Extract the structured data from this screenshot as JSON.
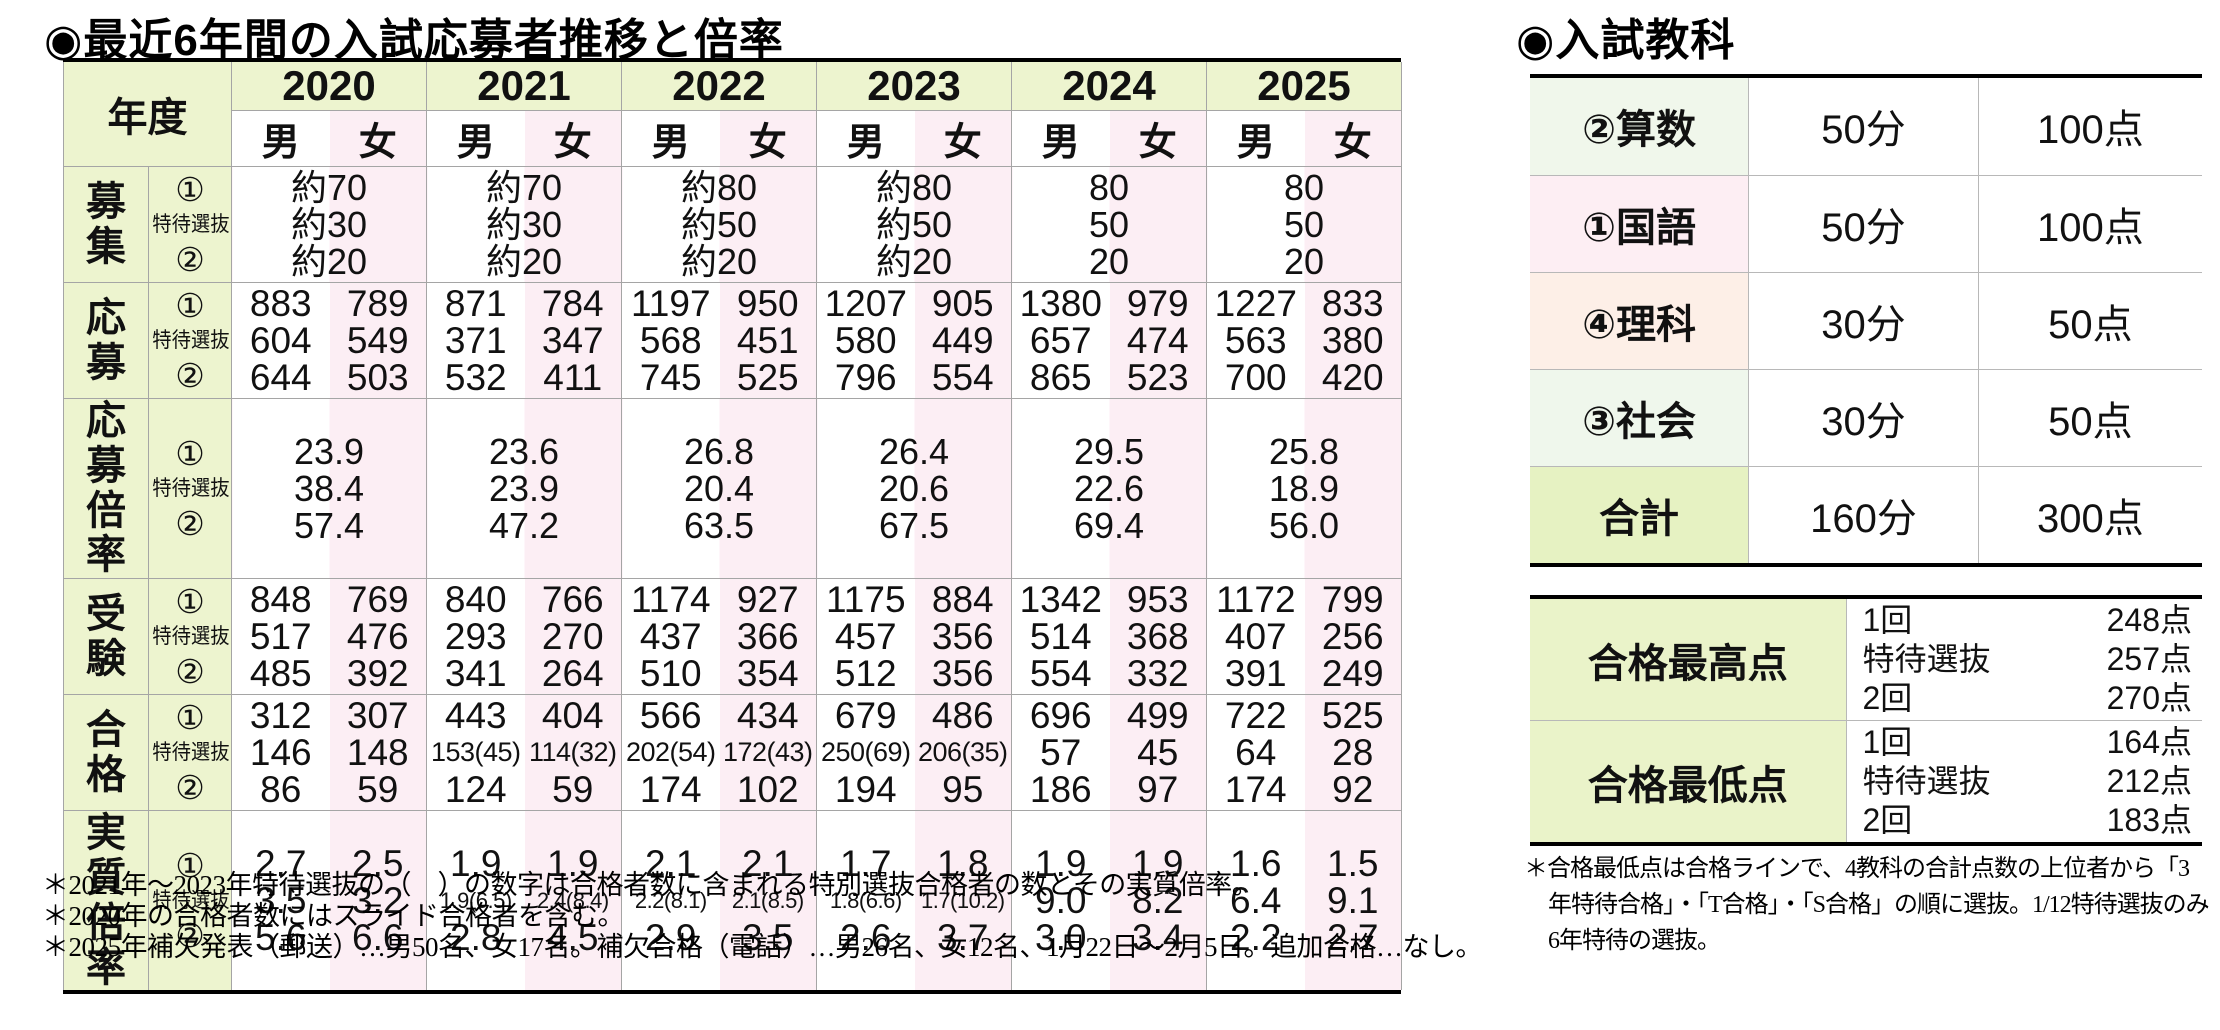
{
  "page": {
    "left_title": "◉最近6年間の入試応募者推移と倍率",
    "right_title": "◉入試教科"
  },
  "colors": {
    "label_green": "#edf4cf",
    "female_pink": "#fceef4",
    "total_green": "#e6f2c2",
    "border_black": "#000000",
    "grid_gray": "#a5a5a5"
  },
  "admissions": {
    "header": {
      "year_label": "年度",
      "male": "男",
      "female": "女",
      "years": [
        "2020",
        "2021",
        "2022",
        "2023",
        "2024",
        "2025"
      ],
      "sub_labels": [
        "①",
        "特待選抜",
        "②"
      ]
    },
    "rows": [
      {
        "label": "募集",
        "merged": true,
        "values": [
          [
            "約70",
            "約30",
            "約20"
          ],
          [
            "約70",
            "約30",
            "約20"
          ],
          [
            "約80",
            "約50",
            "約20"
          ],
          [
            "約80",
            "約50",
            "約20"
          ],
          [
            "80",
            "50",
            "20"
          ],
          [
            "80",
            "50",
            "20"
          ]
        ]
      },
      {
        "label": "応募",
        "merged": false,
        "values": [
          [
            [
              "883",
              "604",
              "644"
            ],
            [
              "789",
              "549",
              "503"
            ]
          ],
          [
            [
              "871",
              "371",
              "532"
            ],
            [
              "784",
              "347",
              "411"
            ]
          ],
          [
            [
              "1197",
              "568",
              "745"
            ],
            [
              "950",
              "451",
              "525"
            ]
          ],
          [
            [
              "1207",
              "580",
              "796"
            ],
            [
              "905",
              "449",
              "554"
            ]
          ],
          [
            [
              "1380",
              "657",
              "865"
            ],
            [
              "979",
              "474",
              "523"
            ]
          ],
          [
            [
              "1227",
              "563",
              "700"
            ],
            [
              "833",
              "380",
              "420"
            ]
          ]
        ]
      },
      {
        "label": "応募倍率",
        "merged": true,
        "values": [
          [
            "23.9",
            "38.4",
            "57.4"
          ],
          [
            "23.6",
            "23.9",
            "47.2"
          ],
          [
            "26.8",
            "20.4",
            "63.5"
          ],
          [
            "26.4",
            "20.6",
            "67.5"
          ],
          [
            "29.5",
            "22.6",
            "69.4"
          ],
          [
            "25.8",
            "18.9",
            "56.0"
          ]
        ]
      },
      {
        "label": "受験",
        "merged": false,
        "values": [
          [
            [
              "848",
              "517",
              "485"
            ],
            [
              "769",
              "476",
              "392"
            ]
          ],
          [
            [
              "840",
              "293",
              "341"
            ],
            [
              "766",
              "270",
              "264"
            ]
          ],
          [
            [
              "1174",
              "437",
              "510"
            ],
            [
              "927",
              "366",
              "354"
            ]
          ],
          [
            [
              "1175",
              "457",
              "512"
            ],
            [
              "884",
              "356",
              "356"
            ]
          ],
          [
            [
              "1342",
              "514",
              "554"
            ],
            [
              "953",
              "368",
              "332"
            ]
          ],
          [
            [
              "1172",
              "407",
              "391"
            ],
            [
              "799",
              "256",
              "249"
            ]
          ]
        ]
      },
      {
        "label": "合格",
        "merged": false,
        "values": [
          [
            [
              "312",
              "146",
              "86"
            ],
            [
              "307",
              "148",
              "59"
            ]
          ],
          [
            [
              "443",
              "153(45)",
              "124"
            ],
            [
              "404",
              "114(32)",
              "59"
            ]
          ],
          [
            [
              "566",
              "202(54)",
              "174"
            ],
            [
              "434",
              "172(43)",
              "102"
            ]
          ],
          [
            [
              "679",
              "250(69)",
              "194"
            ],
            [
              "486",
              "206(35)",
              "95"
            ]
          ],
          [
            [
              "696",
              "57",
              "186"
            ],
            [
              "499",
              "45",
              "97"
            ]
          ],
          [
            [
              "722",
              "64",
              "174"
            ],
            [
              "525",
              "28",
              "92"
            ]
          ]
        ]
      },
      {
        "label": "実質倍率",
        "merged": false,
        "values": [
          [
            [
              "2.7",
              "3.5",
              "5.6"
            ],
            [
              "2.5",
              "3.2",
              "6.6"
            ]
          ],
          [
            [
              "1.9",
              "1.9(6.5)",
              "2.8"
            ],
            [
              "1.9",
              "2.4(8.4)",
              "4.5"
            ]
          ],
          [
            [
              "2.1",
              "2.2(8.1)",
              "2.9"
            ],
            [
              "2.1",
              "2.1(8.5)",
              "3.5"
            ]
          ],
          [
            [
              "1.7",
              "1.8(6.6)",
              "2.6"
            ],
            [
              "1.8",
              "1.7(10.2)",
              "3.7"
            ]
          ],
          [
            [
              "1.9",
              "9.0",
              "3.0"
            ],
            [
              "1.9",
              "8.2",
              "3.4"
            ]
          ],
          [
            [
              "1.6",
              "6.4",
              "2.2"
            ],
            [
              "1.5",
              "9.1",
              "2.7"
            ]
          ]
        ]
      }
    ],
    "footnotes": [
      "＊2021年～2023年特待選抜の（　）の数字は合格者数に含まれる特別選抜合格者の数とその実質倍率。",
      "＊2020年の合格者数にはスライド合格者を含む。",
      "＊2025年補欠発表（郵送）…男50名、女17名。補欠合格（電話）…男26名、女12名、1月22日～2月5日。追加合格…なし。"
    ]
  },
  "subjects": {
    "rows": [
      {
        "label": "②算数",
        "time": "50分",
        "points": "100点",
        "bg": "#f0f7eb"
      },
      {
        "label": "①国語",
        "time": "50分",
        "points": "100点",
        "bg": "#fdeef3"
      },
      {
        "label": "④理科",
        "time": "30分",
        "points": "50点",
        "bg": "#fdefe7"
      },
      {
        "label": "③社会",
        "time": "30分",
        "points": "50点",
        "bg": "#eff7ec"
      },
      {
        "label": "合計",
        "time": "160分",
        "points": "300点",
        "bg": "#e6f2c2"
      }
    ]
  },
  "scores": {
    "rows": [
      {
        "label": "合格最高点",
        "items": [
          {
            "name": "1回",
            "value": "248点"
          },
          {
            "name": "特待選抜",
            "value": "257点"
          },
          {
            "name": "2回",
            "value": "270点"
          }
        ]
      },
      {
        "label": "合格最低点",
        "items": [
          {
            "name": "1回",
            "value": "164点"
          },
          {
            "name": "特待選抜",
            "value": "212点"
          },
          {
            "name": "2回",
            "value": "183点"
          }
        ]
      }
    ]
  },
  "right_footnote": "＊合格最低点は合格ラインで、4教科の合計点数の上位者から「3年特待合格」・「T合格」・「S合格」の順に選抜。1/12特待選抜のみ6年特待の選抜。"
}
